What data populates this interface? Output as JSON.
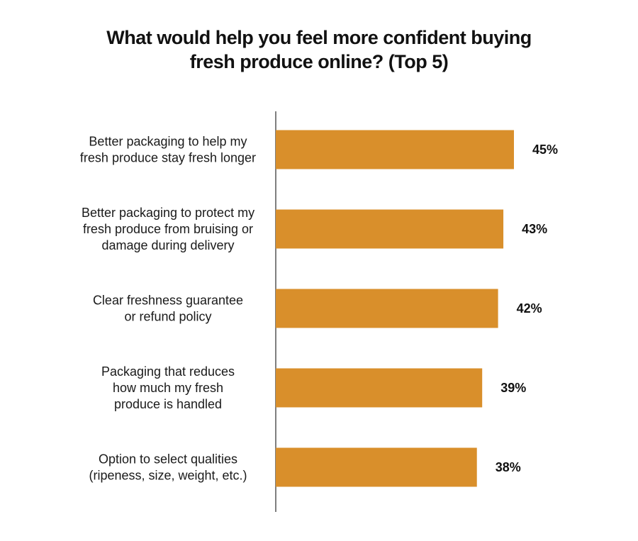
{
  "chart_data": {
    "type": "bar",
    "orientation": "horizontal",
    "title": "What would help you feel more confident buying\nfresh produce online? (Top 5)",
    "categories": [
      "Better packaging to help my\nfresh produce stay fresh longer",
      "Better packaging to protect my\nfresh produce from bruising or\ndamage during delivery",
      "Clear freshness guarantee\nor refund policy",
      "Packaging that reduces\nhow much my fresh\nproduce is handled",
      "Option to select qualities\n(ripeness, size, weight, etc.)"
    ],
    "values": [
      45,
      43,
      42,
      39,
      38
    ],
    "value_labels": [
      "45%",
      "43%",
      "42%",
      "39%",
      "38%"
    ],
    "xlim": [
      0,
      50
    ],
    "grid": false,
    "legend": "none",
    "bar_color": "#D98F2B",
    "axis_color": "#555555"
  }
}
